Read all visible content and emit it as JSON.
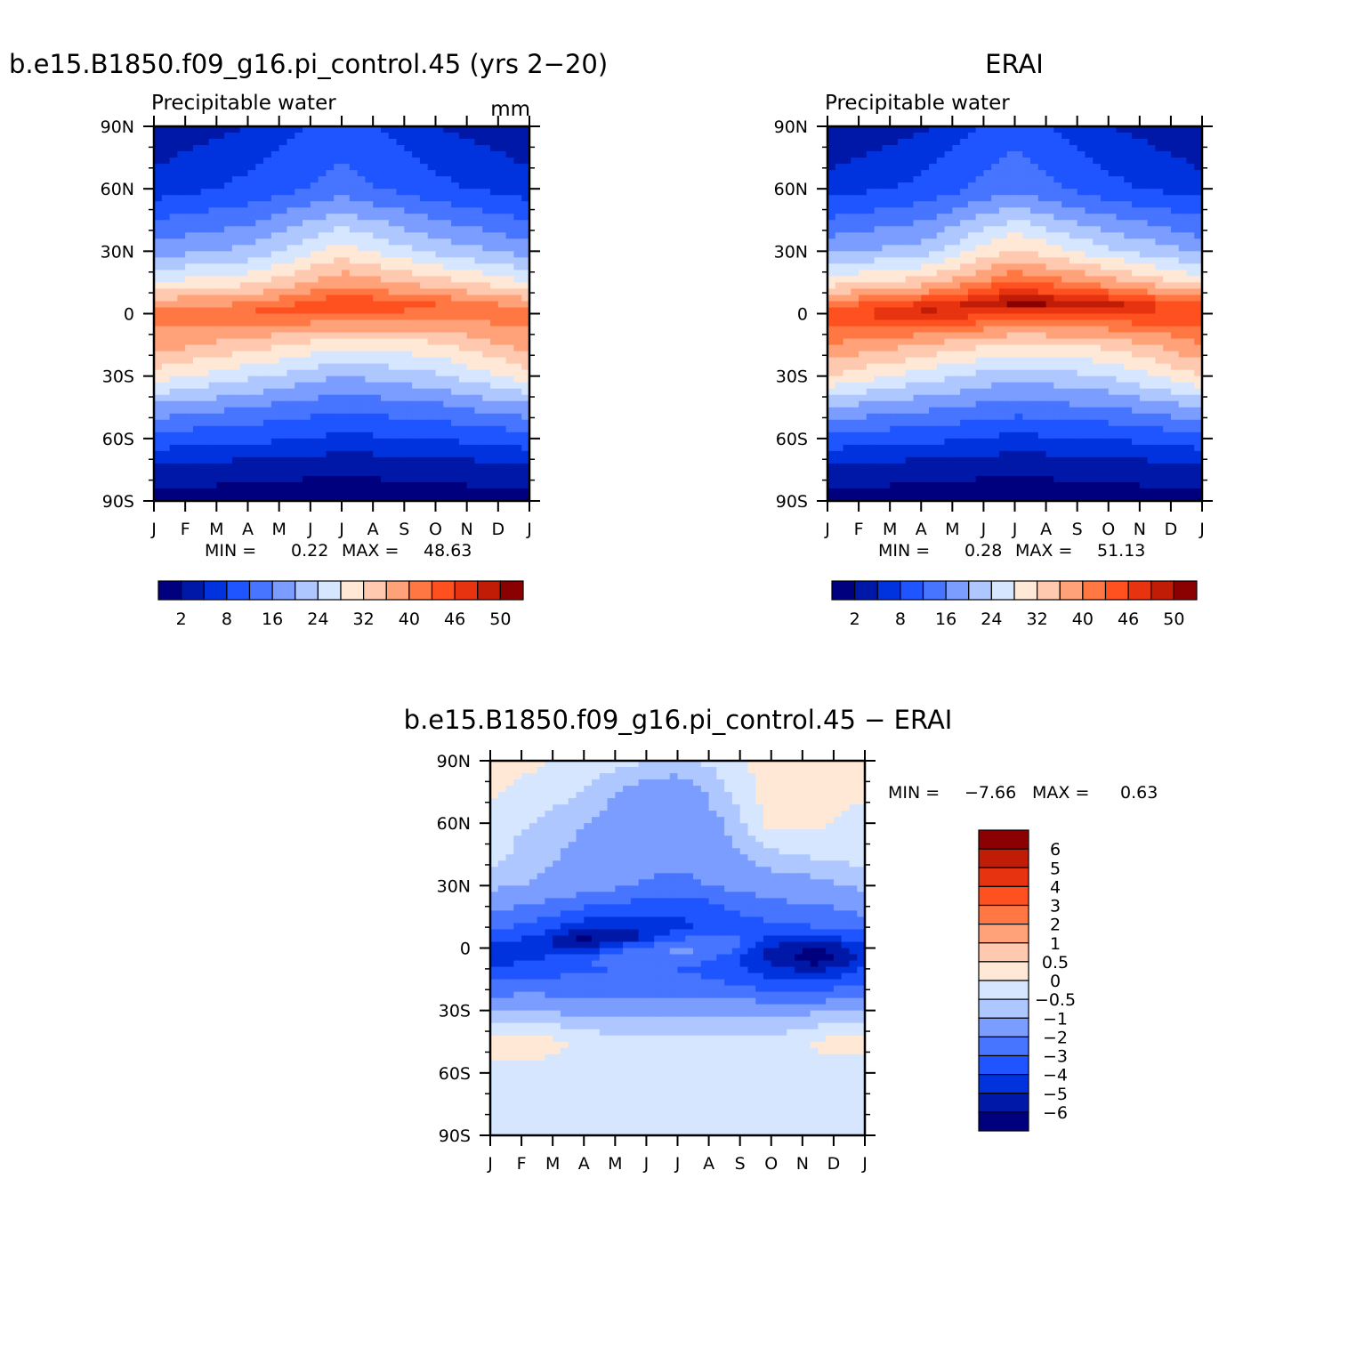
{
  "chart_data": [
    {
      "type": "heatmap",
      "panel": "model",
      "title": "b.e15.B1850.f09_g16.pi_control.45 (yrs 2−20)",
      "subtitle": "Precipitable water",
      "units": "mm",
      "stats": {
        "min_label": "MIN =",
        "min": "0.22",
        "max_label": "MAX =",
        "max": "48.63"
      },
      "x_ticklabels": [
        "J",
        "F",
        "M",
        "A",
        "M",
        "J",
        "J",
        "A",
        "S",
        "O",
        "N",
        "D",
        "J"
      ],
      "y_ticklabels": [
        "90N",
        "60N",
        "30N",
        "0",
        "30S",
        "60S",
        "90S"
      ],
      "ylim": [
        -90,
        90
      ],
      "levels": [
        2,
        5,
        8,
        12,
        16,
        20,
        24,
        28,
        32,
        36,
        40,
        43,
        46,
        48,
        50
      ],
      "colorbar_labels": [
        "2",
        "8",
        "16",
        "24",
        "32",
        "40",
        "46",
        "50"
      ],
      "field": {
        "month": [
          1,
          4,
          7,
          10,
          13
        ],
        "lat": [
          90,
          60,
          30,
          15,
          5,
          0,
          -15,
          -30,
          -45,
          -60,
          -75,
          -90
        ],
        "values": [
          [
            3,
            5,
            10,
            5,
            3
          ],
          [
            6,
            9,
            14,
            9,
            6
          ],
          [
            18,
            21,
            30,
            23,
            18
          ],
          [
            28,
            31,
            39,
            34,
            28
          ],
          [
            38,
            40,
            46,
            43,
            38
          ],
          [
            42,
            44,
            44,
            42,
            42
          ],
          [
            38,
            34,
            29,
            31,
            38
          ],
          [
            30,
            25,
            20,
            23,
            30
          ],
          [
            19,
            16,
            13,
            15,
            19
          ],
          [
            10,
            9,
            7,
            8,
            10
          ],
          [
            4,
            3,
            2.5,
            3,
            4
          ],
          [
            1,
            0.5,
            0.3,
            0.5,
            1
          ]
        ]
      }
    },
    {
      "type": "heatmap",
      "panel": "obs",
      "title": "ERAI",
      "subtitle": "Precipitable water",
      "stats": {
        "min_label": "MIN =",
        "min": "0.28",
        "max_label": "MAX =",
        "max": "51.13"
      },
      "x_ticklabels": [
        "J",
        "F",
        "M",
        "A",
        "M",
        "J",
        "J",
        "A",
        "S",
        "O",
        "N",
        "D",
        "J"
      ],
      "y_ticklabels": [
        "90N",
        "60N",
        "30N",
        "0",
        "30S",
        "60S",
        "90S"
      ],
      "ylim": [
        -90,
        90
      ],
      "levels": [
        2,
        5,
        8,
        12,
        16,
        20,
        24,
        28,
        32,
        36,
        40,
        43,
        46,
        48,
        50
      ],
      "colorbar_labels": [
        "2",
        "8",
        "16",
        "24",
        "32",
        "40",
        "46",
        "50"
      ],
      "field": {
        "month": [
          1,
          4,
          7,
          10,
          13
        ],
        "lat": [
          90,
          60,
          30,
          15,
          5,
          0,
          -15,
          -30,
          -45,
          -60,
          -75,
          -90
        ],
        "values": [
          [
            2.5,
            4.5,
            10,
            5,
            2.5
          ],
          [
            6,
            9,
            15,
            9,
            6
          ],
          [
            19,
            22,
            33,
            25,
            19
          ],
          [
            30,
            34,
            44,
            38,
            30
          ],
          [
            41,
            46,
            51,
            49,
            43
          ],
          [
            45,
            49,
            46,
            47,
            45
          ],
          [
            40,
            36,
            31,
            33,
            40
          ],
          [
            32,
            26,
            21,
            24,
            32
          ],
          [
            20,
            17,
            14,
            16,
            20
          ],
          [
            10,
            9,
            7,
            8,
            10
          ],
          [
            4,
            3,
            2.5,
            3,
            4
          ],
          [
            1,
            0.5,
            0.3,
            0.5,
            1
          ]
        ]
      }
    },
    {
      "type": "heatmap",
      "panel": "difference",
      "title": "b.e15.B1850.f09_g16.pi_control.45 − ERAI",
      "stats": {
        "min_label": "MIN =",
        "min": "−7.66",
        "max_label": "MAX =",
        "max": "0.63"
      },
      "x_ticklabels": [
        "J",
        "F",
        "M",
        "A",
        "M",
        "J",
        "J",
        "A",
        "S",
        "O",
        "N",
        "D",
        "J"
      ],
      "y_ticklabels": [
        "90N",
        "60N",
        "30N",
        "0",
        "30S",
        "60S",
        "90S"
      ],
      "ylim": [
        -90,
        90
      ],
      "levels": [
        -6,
        -5,
        -4,
        -3,
        -2,
        -1,
        -0.5,
        0,
        0.5,
        1,
        2,
        3,
        4,
        5,
        6
      ],
      "colorbar_labels": [
        "6",
        "5",
        "4",
        "3",
        "2",
        "1",
        "0.5",
        "0",
        "−0.5",
        "−1",
        "−2",
        "−3",
        "−4",
        "−5",
        "−6"
      ],
      "field": {
        "month": [
          1,
          2.5,
          4,
          5.5,
          7,
          8.5,
          10,
          11.5,
          13
        ],
        "lat": [
          90,
          75,
          60,
          45,
          30,
          20,
          10,
          5,
          0,
          -5,
          -10,
          -20,
          -30,
          -45,
          -60,
          -75,
          -90
        ],
        "values": [
          [
            0.2,
            0.1,
            -0.2,
            -0.4,
            -0.6,
            -0.3,
            0.3,
            0.2,
            0.2
          ],
          [
            0.1,
            -0.2,
            -0.5,
            -1.2,
            -1.5,
            -0.6,
            0.3,
            0.3,
            0.1
          ],
          [
            -0.3,
            -0.5,
            -1.0,
            -1.5,
            -1.6,
            -1.0,
            0.2,
            0.1,
            -0.3
          ],
          [
            -0.3,
            -0.8,
            -1.2,
            -1.3,
            -1.6,
            -1.2,
            -0.6,
            -0.4,
            -0.3
          ],
          [
            -0.8,
            -1.1,
            -1.5,
            -2.0,
            -2.4,
            -1.8,
            -1.4,
            -1.2,
            -0.8
          ],
          [
            -1.6,
            -2.2,
            -2.9,
            -3.3,
            -3.8,
            -3.0,
            -2.3,
            -2.1,
            -1.6
          ],
          [
            -2.6,
            -3.4,
            -4.6,
            -5.0,
            -4.2,
            -3.7,
            -3.2,
            -3.0,
            -2.6
          ],
          [
            -3.3,
            -4.2,
            -6.3,
            -5.5,
            -3.2,
            -2.6,
            -4.2,
            -4.6,
            -3.3
          ],
          [
            -4.4,
            -4.9,
            -5.2,
            -3.1,
            -1.6,
            -2.2,
            -5.2,
            -6.2,
            -4.4
          ],
          [
            -4.6,
            -4.1,
            -3.1,
            -2.1,
            -2.2,
            -3.2,
            -5.4,
            -6.9,
            -4.6
          ],
          [
            -3.9,
            -3.5,
            -3.2,
            -2.8,
            -3.0,
            -3.5,
            -4.8,
            -5.4,
            -3.9
          ],
          [
            -2.4,
            -2.3,
            -2.4,
            -2.5,
            -2.5,
            -2.7,
            -3.0,
            -3.2,
            -2.4
          ],
          [
            -0.9,
            -1.0,
            -1.2,
            -1.3,
            -1.2,
            -1.1,
            -1.3,
            -1.1,
            -0.9
          ],
          [
            0.2,
            0.25,
            -0.1,
            -0.3,
            -0.4,
            -0.4,
            -0.3,
            0.1,
            0.2
          ],
          [
            -0.2,
            -0.2,
            -0.3,
            -0.3,
            -0.3,
            -0.3,
            -0.3,
            -0.2,
            -0.2
          ],
          [
            -0.3,
            -0.3,
            -0.3,
            -0.4,
            -0.4,
            -0.3,
            -0.3,
            -0.5,
            -0.3
          ],
          [
            -0.3,
            -0.3,
            -0.3,
            -0.3,
            -0.3,
            -0.3,
            -0.3,
            -0.3,
            -0.3
          ]
        ]
      }
    }
  ],
  "colors": {
    "abs": [
      "#00007f",
      "#0018a8",
      "#0033dd",
      "#1e55ff",
      "#4775ff",
      "#7a9dff",
      "#aec8ff",
      "#d6e6ff",
      "#ffe8d6",
      "#ffc9b0",
      "#ffa27a",
      "#ff7844",
      "#ff5020",
      "#e83310",
      "#c01c06",
      "#8b0000"
    ],
    "diff": [
      "#00007f",
      "#0018a8",
      "#0033dd",
      "#1e55ff",
      "#4775ff",
      "#7a9dff",
      "#aec8ff",
      "#d6e6ff",
      "#ffe8d6",
      "#ffc9b0",
      "#ffa27a",
      "#ff7844",
      "#ff5020",
      "#e83310",
      "#c01c06",
      "#8b0000"
    ]
  }
}
